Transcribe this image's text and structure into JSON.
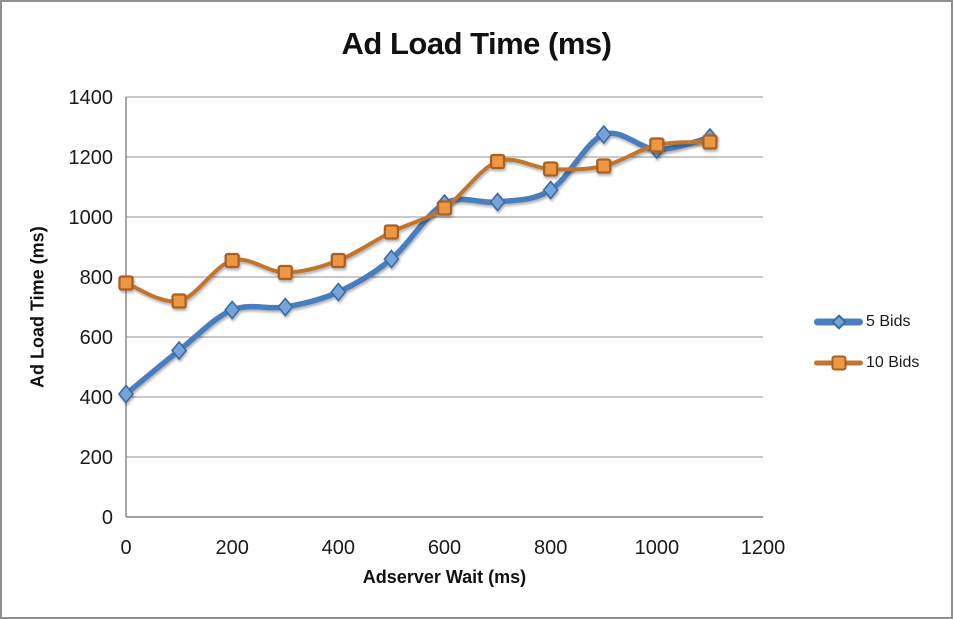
{
  "window": {
    "background": "#ffffff",
    "border_color": "#8f8f8f"
  },
  "chart_data": {
    "type": "line",
    "title": "Ad Load Time (ms)",
    "xlabel": "Adserver Wait (ms)",
    "ylabel": "Ad Load Time (ms)",
    "x": [
      0,
      100,
      200,
      300,
      400,
      500,
      600,
      700,
      800,
      900,
      1000,
      1100
    ],
    "series": [
      {
        "name": "5 Bids",
        "marker": "diamond",
        "line_color": "#4a7ebe",
        "marker_fill": "#76a3d9",
        "marker_stroke": "#3a6ba3",
        "values": [
          410,
          555,
          690,
          700,
          750,
          860,
          1045,
          1050,
          1090,
          1275,
          1225,
          1265
        ]
      },
      {
        "name": "10 Bids",
        "marker": "square",
        "line_color": "#c0742f",
        "marker_fill": "#ee9743",
        "marker_stroke": "#a96023",
        "values": [
          780,
          720,
          855,
          815,
          855,
          950,
          1030,
          1185,
          1160,
          1170,
          1240,
          1250
        ]
      }
    ],
    "x_ticks": [
      0,
      200,
      400,
      600,
      800,
      1000,
      1200
    ],
    "y_ticks": [
      0,
      200,
      400,
      600,
      800,
      1000,
      1200,
      1400
    ],
    "xlim": [
      0,
      1200
    ],
    "ylim": [
      0,
      1400
    ],
    "grid": "horizontal-only",
    "gridline_color": "#a6a6a6",
    "axis_color": "#808080",
    "tick_label_color": "#1a1a1a",
    "legend_position": "right",
    "smooth_lines": true
  }
}
